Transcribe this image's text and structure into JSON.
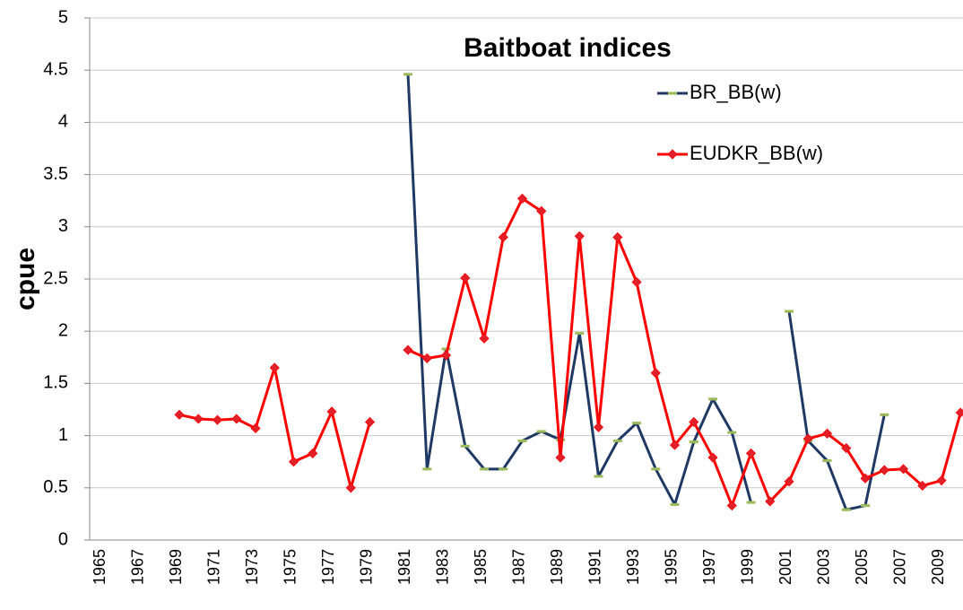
{
  "chart_data": {
    "type": "line",
    "title": "Baitboat indices",
    "y_label": "cpue",
    "categories": [
      "1965",
      null,
      "1967",
      null,
      "1969",
      null,
      "1971",
      null,
      "1973",
      null,
      "1975",
      null,
      "1977",
      null,
      "1979",
      null,
      "1981",
      null,
      "1983",
      null,
      "1985",
      null,
      "1987",
      null,
      "1989",
      null,
      "1991",
      null,
      "1993",
      null,
      "1995",
      null,
      "1997",
      null,
      "1999",
      null,
      "2001",
      null,
      "2003",
      null,
      "2005",
      null,
      "2007",
      null,
      "2009",
      null
    ],
    "series": [
      {
        "name": "BR_BB(w)",
        "color": "#1f3864",
        "marker": "dash",
        "marker_color": "#9bbb59",
        "values": [
          null,
          null,
          null,
          null,
          null,
          null,
          null,
          null,
          null,
          null,
          null,
          null,
          null,
          null,
          null,
          null,
          4.46,
          0.68,
          1.83,
          0.9,
          0.68,
          0.68,
          0.95,
          1.04,
          0.96,
          1.98,
          0.61,
          0.95,
          1.12,
          0.68,
          0.34,
          0.94,
          1.35,
          1.03,
          0.36,
          null,
          2.19,
          0.95,
          0.76,
          0.29,
          0.33,
          1.2,
          null,
          null,
          null,
          null
        ]
      },
      {
        "name": "EUDKR_BB(w)",
        "color": "#ff0000",
        "marker": "diamond",
        "marker_color": "#e0202a",
        "values": [
          null,
          null,
          null,
          null,
          1.2,
          1.16,
          1.15,
          1.16,
          1.07,
          1.65,
          0.75,
          0.83,
          1.23,
          0.5,
          1.13,
          null,
          1.82,
          1.74,
          1.77,
          2.51,
          1.93,
          2.9,
          3.27,
          3.15,
          0.79,
          2.91,
          1.08,
          2.9,
          2.47,
          1.6,
          0.91,
          1.13,
          0.79,
          0.33,
          0.83,
          0.37,
          0.56,
          0.97,
          1.02,
          0.88,
          0.59,
          0.67,
          0.68,
          0.52,
          0.57,
          1.22
        ]
      }
    ],
    "ylim": [
      0,
      5
    ],
    "yticks": [
      0,
      0.5,
      1,
      1.5,
      2,
      2.5,
      3,
      3.5,
      4,
      4.5,
      5
    ],
    "grid": true,
    "legend": "top-right"
  }
}
